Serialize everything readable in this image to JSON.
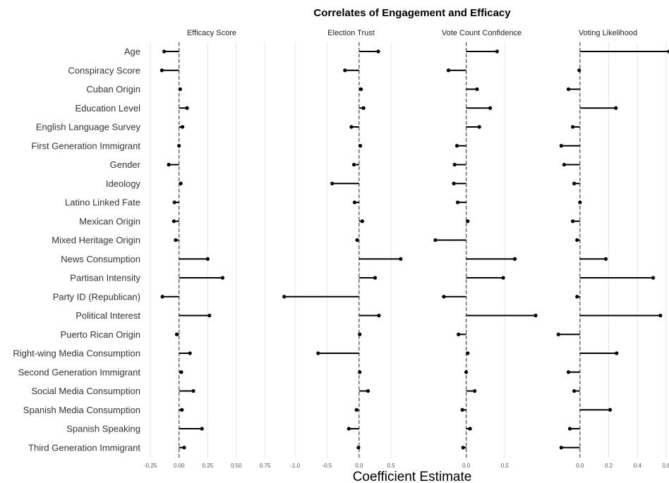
{
  "chart_data": {
    "type": "lollipop",
    "title": "Correlates of Engagement and Efficacy",
    "xlabel": "Coefficient Estimate",
    "ylabel": "",
    "grid": true,
    "reference_line": 0,
    "categories": [
      "Age",
      "Conspiracy Score",
      "Cuban Origin",
      "Education Level",
      "English Language Survey",
      "First Generation Immigrant",
      "Gender",
      "Ideology",
      "Latino Linked Fate",
      "Mexican Origin",
      "Mixed Heritage Origin",
      "News Consumption",
      "Partisan Intensity",
      "Party ID (Republican)",
      "Political Interest",
      "Puerto Rican Origin",
      "Right-wing Media Consumption",
      "Second Generation Immigrant",
      "Social Media Consumption",
      "Spanish Media Consumption",
      "Spanish Speaking",
      "Third Generation Immigrant"
    ],
    "facets": [
      {
        "name": "Efficacy Score",
        "xlim": [
          -0.3,
          0.87
        ],
        "ticks": [
          -0.25,
          0.0,
          0.25,
          0.5,
          0.75
        ],
        "tick_labels": [
          "-0.25",
          "0.00",
          "0.25",
          "0.50",
          "0.75"
        ],
        "values": [
          -0.13,
          -0.15,
          0.01,
          0.07,
          0.03,
          0.0,
          -0.09,
          0.015,
          -0.04,
          -0.045,
          -0.03,
          0.25,
          0.38,
          -0.145,
          0.265,
          -0.02,
          0.095,
          0.02,
          0.125,
          0.025,
          0.2,
          0.045
        ]
      },
      {
        "name": "Election Trust",
        "xlim": [
          -1.2,
          0.95
        ],
        "ticks": [
          -1.0,
          -0.5,
          0.0,
          0.5
        ],
        "tick_labels": [
          "-1.0",
          "-0.5",
          "0.0",
          "0.5"
        ],
        "values": [
          0.3,
          -0.22,
          0.03,
          0.07,
          -0.12,
          0.02,
          -0.08,
          -0.42,
          -0.07,
          0.05,
          -0.03,
          0.65,
          0.25,
          -1.17,
          0.31,
          0.01,
          -0.64,
          0.01,
          0.14,
          -0.04,
          -0.16,
          -0.01
        ]
      },
      {
        "name": "Vote Count Confidence",
        "xlim": [
          -0.6,
          1.0
        ],
        "ticks": [
          0.0,
          0.5
        ],
        "tick_labels": [
          "0.0",
          "0.5"
        ],
        "values": [
          0.4,
          -0.23,
          0.14,
          0.31,
          0.17,
          -0.12,
          -0.15,
          -0.16,
          -0.11,
          0.02,
          -0.4,
          0.63,
          0.48,
          -0.29,
          0.9,
          -0.1,
          0.02,
          0.0,
          0.11,
          -0.05,
          0.05,
          -0.04
        ]
      },
      {
        "name": "Voting Likelihood",
        "xlim": [
          -0.23,
          0.62
        ],
        "ticks": [
          0.0,
          0.2,
          0.4,
          0.6
        ],
        "tick_labels": [
          "0.0",
          "0.2",
          "0.4",
          "0.6"
        ],
        "values": [
          0.62,
          -0.005,
          -0.08,
          0.25,
          -0.05,
          -0.13,
          -0.11,
          -0.04,
          0.0,
          -0.05,
          -0.02,
          0.18,
          0.51,
          -0.02,
          0.56,
          -0.15,
          0.255,
          -0.08,
          -0.04,
          0.21,
          -0.07,
          -0.13
        ]
      }
    ]
  }
}
